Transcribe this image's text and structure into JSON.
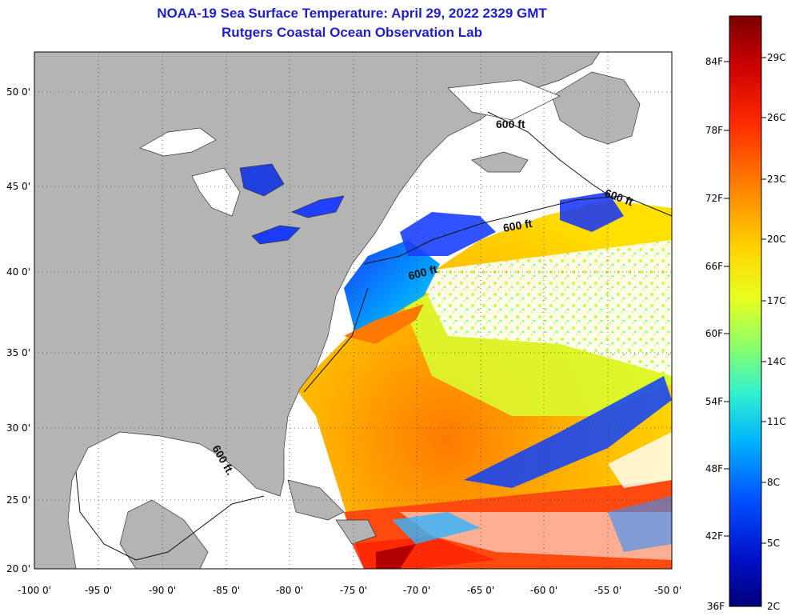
{
  "title": "NOAA-19 Sea Surface Temperature:  April 29, 2022 2329 GMT",
  "subtitle": "Rutgers Coastal Ocean Observation Lab",
  "map": {
    "lon_range": [
      -100,
      -50
    ],
    "lat_range": [
      20,
      52.5
    ],
    "x_ticks": [
      "-100 0'",
      "-95 0'",
      "-90 0'",
      "-85 0'",
      "-80 0'",
      "-75 0'",
      "-70 0'",
      "-65 0'",
      "-60 0'",
      "-55 0'",
      "-50 0'"
    ],
    "y_ticks": [
      "50 0'",
      "45 0'",
      "40 0'",
      "35 0'",
      "30 0'",
      "25 0'",
      "20 0'"
    ],
    "isobath_labels": [
      "600 ft",
      "600 ft",
      "600 ft",
      "600 ft",
      "600 ft."
    ],
    "colors": {
      "land": "#b4b4b4",
      "no_data": "#ffffff",
      "grid": "#555555"
    }
  },
  "colorbar": {
    "fahrenheit": [
      "84F",
      "78F",
      "72F",
      "66F",
      "60F",
      "54F",
      "48F",
      "42F",
      "36F"
    ],
    "celsius": [
      "29C",
      "26C",
      "23C",
      "20C",
      "17C",
      "14C",
      "11C",
      "8C",
      "5C",
      "2C"
    ],
    "colors": [
      "#7a0000",
      "#c80000",
      "#ff2a00",
      "#ff8a00",
      "#ffd800",
      "#e6ff20",
      "#8cff6a",
      "#30f0d0",
      "#00b4ff",
      "#0050ff",
      "#0010c8",
      "#00007a"
    ]
  }
}
